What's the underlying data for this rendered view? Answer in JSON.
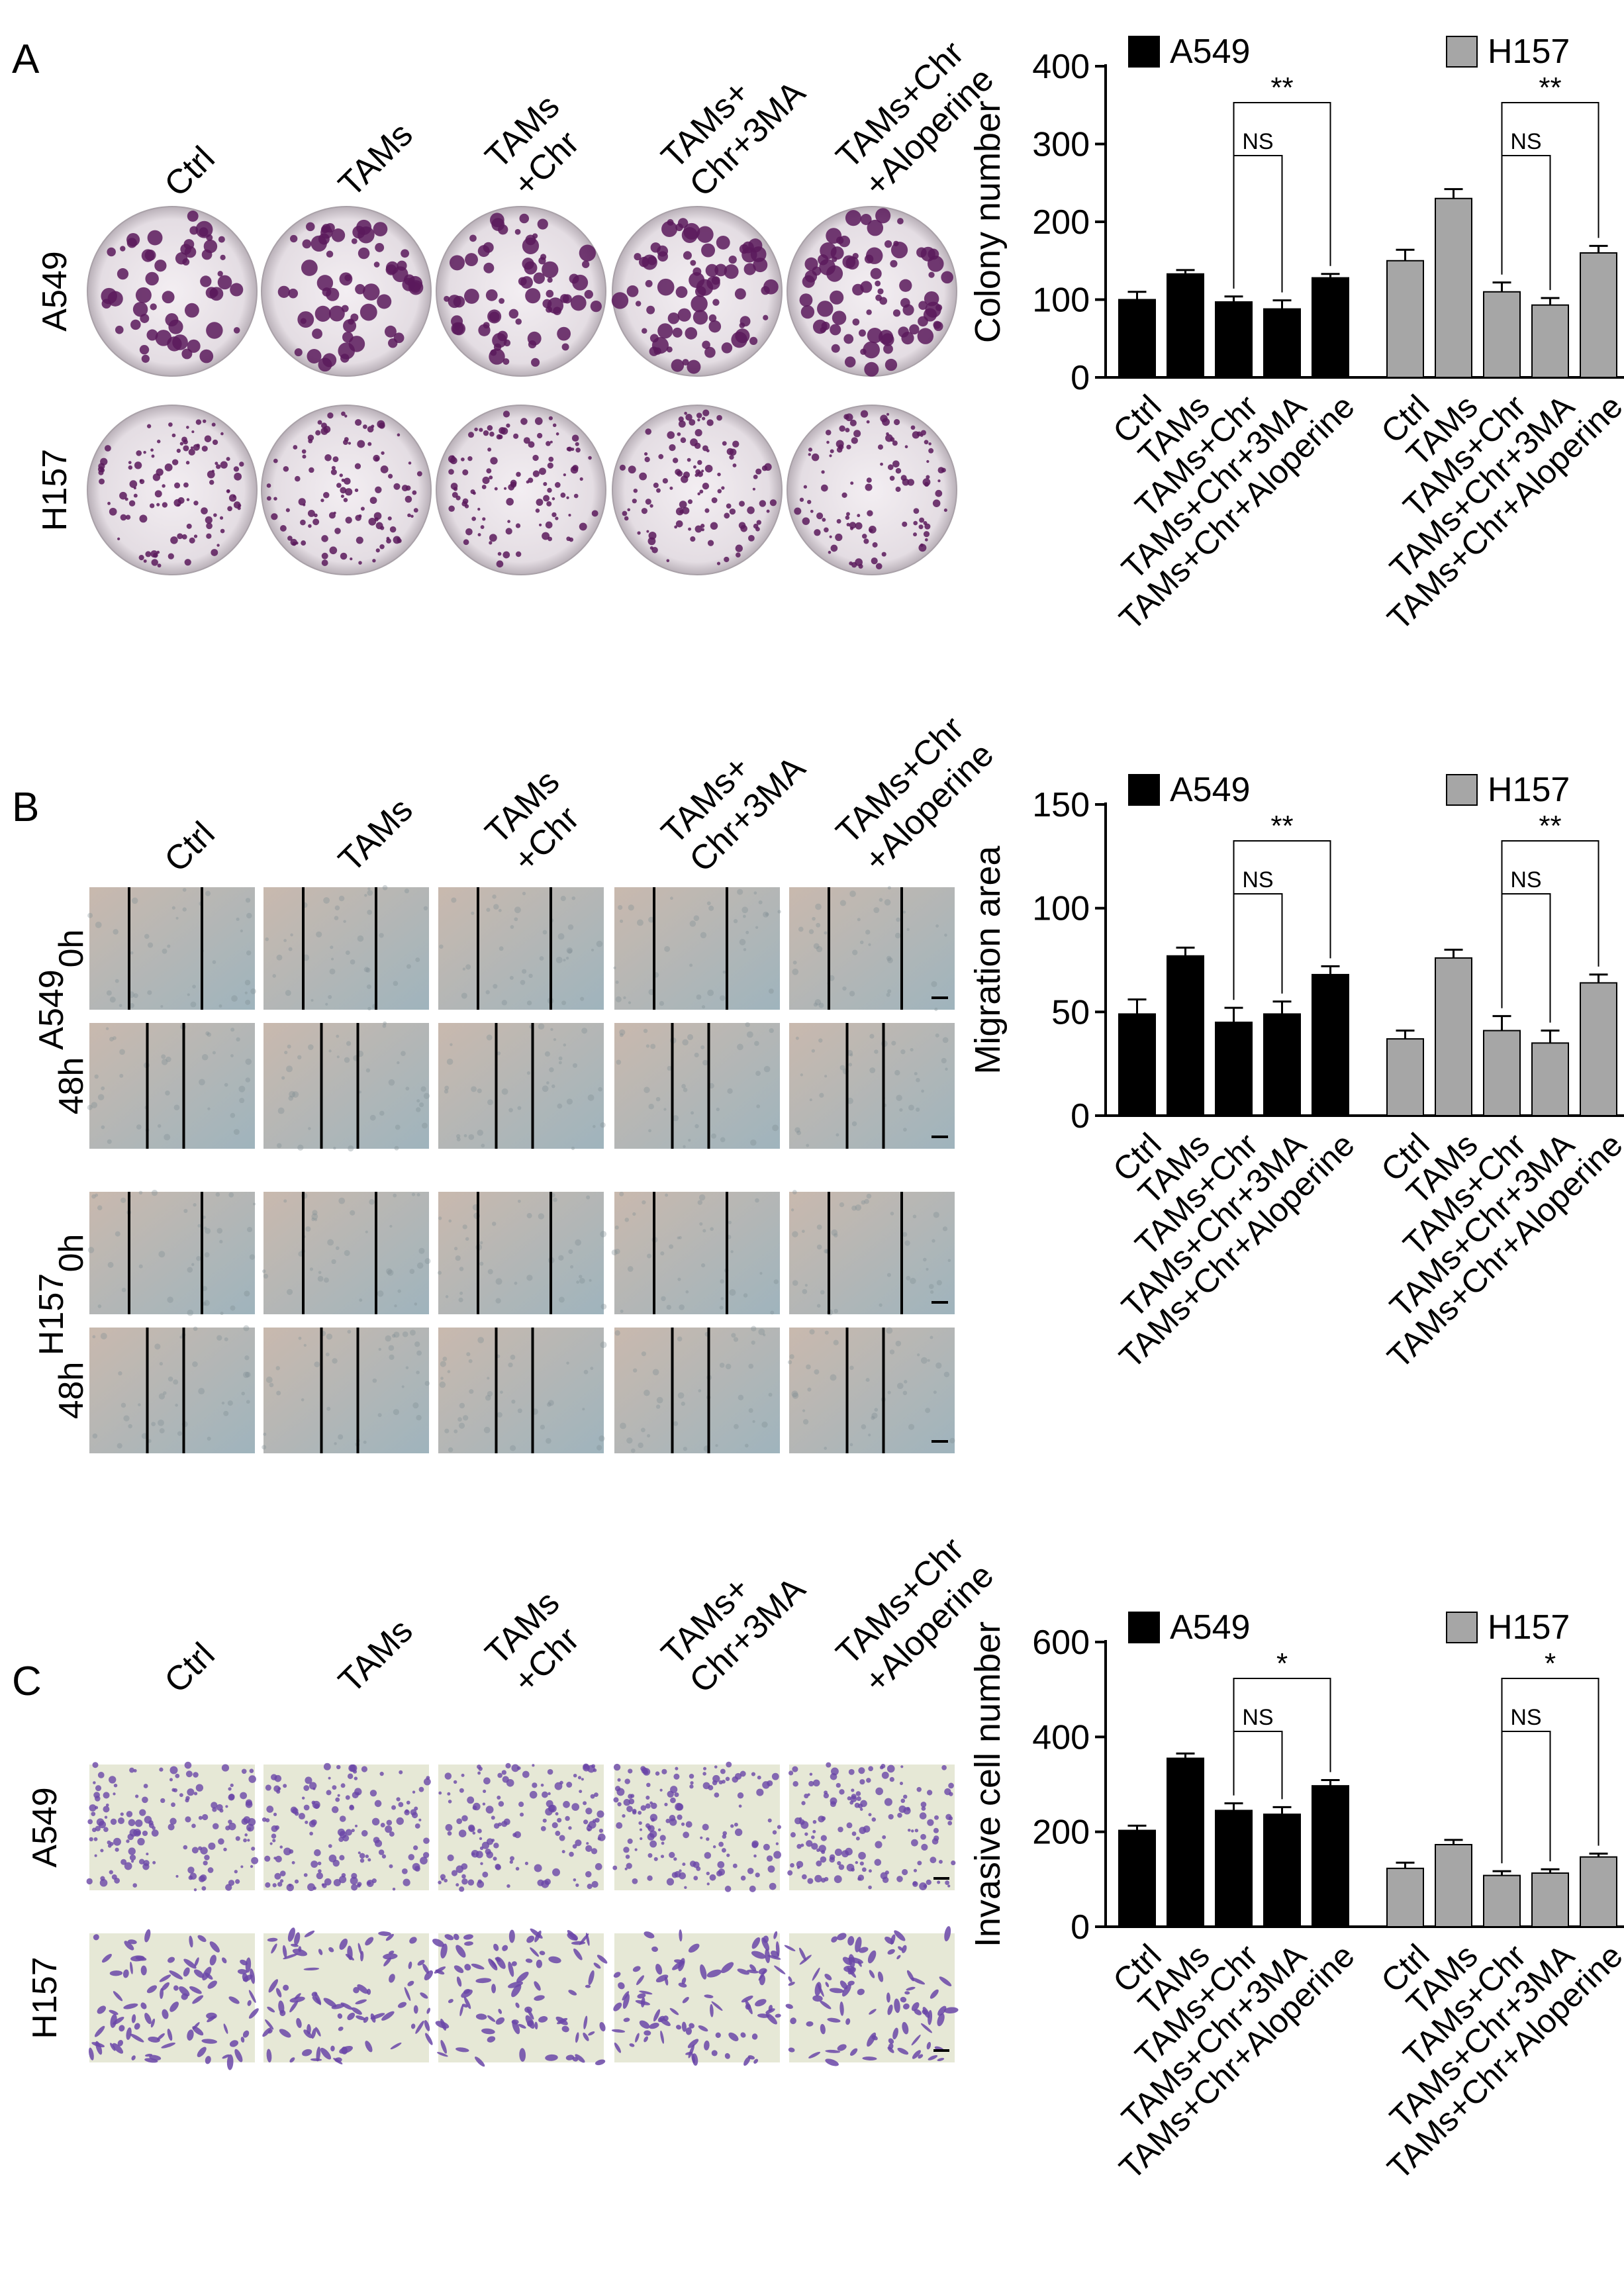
{
  "panels": [
    {
      "letter": "A",
      "lines": [
        "A549",
        "H157"
      ],
      "line_rows": [
        [
          "A549"
        ],
        [
          "H157"
        ]
      ],
      "image_kind": "dish",
      "columns": [
        [
          "Ctrl"
        ],
        [
          "TAMs"
        ],
        [
          "TAMs",
          "+Chr"
        ],
        [
          "TAMs+",
          "Chr+3MA"
        ],
        [
          "TAMs+Chr",
          "+Aloperine"
        ]
      ]
    },
    {
      "letter": "B",
      "lines": [
        "A549",
        "H157"
      ],
      "line_rows": [
        [
          "0h",
          "48h"
        ],
        [
          "0h",
          "48h"
        ]
      ],
      "image_kind": "scratch",
      "columns": [
        [
          "Ctrl"
        ],
        [
          "TAMs"
        ],
        [
          "TAMs",
          "+Chr"
        ],
        [
          "TAMs+",
          "Chr+3MA"
        ],
        [
          "TAMs+Chr",
          "+Aloperine"
        ]
      ]
    },
    {
      "letter": "C",
      "lines": [
        "A549",
        "H157"
      ],
      "line_rows": [
        [
          "A549"
        ],
        [
          "H157"
        ]
      ],
      "image_kind": "transwell",
      "columns": [
        [
          "Ctrl"
        ],
        [
          "TAMs"
        ],
        [
          "TAMs",
          "+Chr"
        ],
        [
          "TAMs+",
          "Chr+3MA"
        ],
        [
          "TAMs+Chr",
          "+Aloperine"
        ]
      ]
    }
  ],
  "image_colors": {
    "dish_stain": "#5a1a5c",
    "dish_bg": "#efeaee",
    "scratch_bg": "#b7c2c6",
    "transwell_bg": "#e6e8d6",
    "transwell_stain": "#6a46a8"
  },
  "chart_data": [
    {
      "type": "bar",
      "ylabel": "Colony number",
      "ylim": [
        0,
        400
      ],
      "yticks": [
        0,
        100,
        200,
        300,
        400
      ],
      "categories": [
        "Ctrl",
        "TAMs",
        "TAMs+Chr",
        "TAMs+Chr+3MA",
        "TAMs+Chr+Aloperine"
      ],
      "series": [
        {
          "name": "A549",
          "color": "#000000",
          "values": [
            100,
            133,
            97,
            88,
            128
          ],
          "errors": [
            10,
            5,
            7,
            11,
            5
          ]
        },
        {
          "name": "H157",
          "color": "#a6a6a6",
          "values": [
            150,
            230,
            110,
            93,
            160
          ],
          "errors": [
            14,
            12,
            12,
            9,
            9
          ]
        }
      ],
      "legend": "top",
      "annotations": {
        "outer": "**",
        "inner": "NS"
      }
    },
    {
      "type": "bar",
      "ylabel": "Migration area",
      "ylim": [
        0,
        150
      ],
      "yticks": [
        0,
        50,
        100,
        150
      ],
      "categories": [
        "Ctrl",
        "TAMs",
        "TAMs+Chr",
        "TAMs+Chr+3MA",
        "TAMs+Chr+Aloperine"
      ],
      "series": [
        {
          "name": "A549",
          "color": "#000000",
          "values": [
            49,
            77,
            45,
            49,
            68
          ],
          "errors": [
            7,
            4,
            7,
            6,
            4
          ]
        },
        {
          "name": "H157",
          "color": "#a6a6a6",
          "values": [
            37,
            76,
            41,
            35,
            64
          ],
          "errors": [
            4,
            4,
            7,
            6,
            4
          ]
        }
      ],
      "legend": "top",
      "annotations": {
        "outer": "**",
        "inner": "NS"
      }
    },
    {
      "type": "bar",
      "ylabel": "Invasive cell number",
      "ylim": [
        0,
        600
      ],
      "yticks": [
        0,
        200,
        400,
        600
      ],
      "categories": [
        "Ctrl",
        "TAMs",
        "TAMs+Chr",
        "TAMs+Chr+3MA",
        "TAMs+Chr+Aloperine"
      ],
      "series": [
        {
          "name": "A549",
          "color": "#000000",
          "values": [
            203,
            355,
            245,
            237,
            297
          ],
          "errors": [
            10,
            10,
            15,
            15,
            12
          ]
        },
        {
          "name": "H157",
          "color": "#a6a6a6",
          "values": [
            123,
            173,
            108,
            113,
            147
          ],
          "errors": [
            12,
            10,
            9,
            8,
            7
          ]
        }
      ],
      "legend": "top",
      "annotations": {
        "outer": "*",
        "inner": "NS"
      }
    }
  ]
}
